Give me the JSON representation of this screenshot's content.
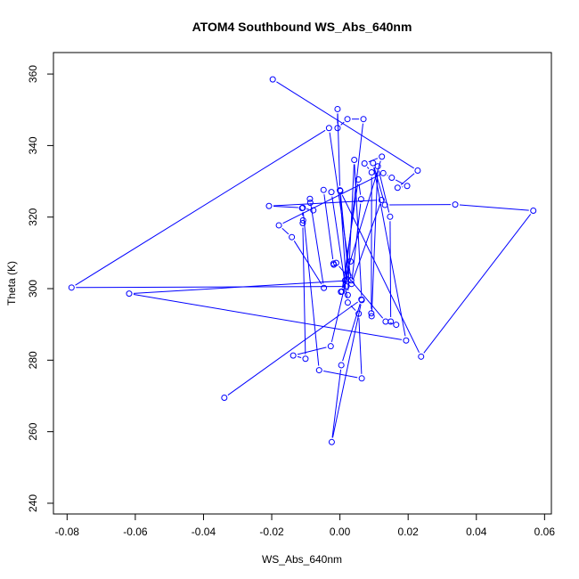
{
  "chart_data": {
    "type": "line",
    "title": "ATOM4 Southbound WS_Abs_640nm",
    "xlabel": "WS_Abs_640nm",
    "ylabel": "Theta (K)",
    "xlim": [
      -0.084,
      0.062
    ],
    "ylim": [
      237,
      366
    ],
    "xticks": [
      -0.08,
      -0.06,
      -0.04,
      -0.02,
      0.0,
      0.02,
      0.04,
      0.06
    ],
    "xtick_labels": [
      "-0.08",
      "-0.06",
      "-0.04",
      "-0.02",
      "0.00",
      "0.02",
      "0.04",
      "0.06"
    ],
    "yticks": [
      240,
      260,
      280,
      300,
      320,
      340,
      360
    ],
    "ytick_labels": [
      "240",
      "260",
      "280",
      "300",
      "320",
      "340",
      "360"
    ],
    "grid": false,
    "color": "#0000ff",
    "series": [
      {
        "points": [
          [
            -0.0197,
            358.5
          ],
          [
            0.0228,
            333.0
          ],
          [
            0.0169,
            328.2
          ],
          [
            0.0197,
            328.7
          ],
          [
            0.0152,
            331.0
          ],
          [
            0.0127,
            332.3
          ],
          [
            -0.0179,
            317.7
          ],
          [
            -0.0141,
            314.4
          ],
          [
            -0.0047,
            300.2
          ],
          [
            -0.0088,
            325.1
          ],
          [
            -0.0087,
            324.0
          ],
          [
            -0.0078,
            321.9
          ],
          [
            -0.0111,
            322.5
          ],
          [
            -0.0108,
            319.1
          ],
          [
            -0.0109,
            318.3
          ],
          [
            -0.0101,
            280.4
          ],
          [
            -0.0137,
            281.3
          ],
          [
            -0.0027,
            283.9
          ],
          [
            0.0031,
            307.6
          ],
          [
            0.0015,
            302.3
          ],
          [
            0.0069,
            347.4
          ],
          [
            0.0022,
            347.4
          ],
          [
            -0.0007,
            344.9
          ],
          [
            -0.0007,
            350.2
          ],
          [
            0.0,
            327.5
          ],
          [
            0.0019,
            300.6
          ],
          [
            -0.0787,
            300.3
          ],
          [
            -0.0032,
            344.9
          ],
          [
            0.0033,
            302.3
          ],
          [
            -0.0618,
            298.6
          ],
          [
            0.0194,
            285.5
          ],
          [
            0.0097,
            335.1
          ],
          [
            0.0132,
            323.4
          ],
          [
            0.0338,
            323.5
          ],
          [
            0.0567,
            321.8
          ],
          [
            0.0238,
            281.0
          ],
          [
            0.0001,
            327.3
          ],
          [
            0.0025,
            303.7
          ],
          [
            0.0003,
            299.1
          ],
          [
            0.0123,
            336.9
          ],
          [
            0.0072,
            335.0
          ],
          [
            0.0093,
            332.5
          ],
          [
            0.0092,
            293.1
          ],
          [
            0.0093,
            292.3
          ],
          [
            0.0111,
            334.2
          ],
          [
            0.0147,
            320.1
          ],
          [
            0.0149,
            290.8
          ],
          [
            0.0165,
            289.9
          ],
          [
            0.0134,
            290.8
          ],
          [
            -0.0011,
            307.2
          ],
          [
            -0.0018,
            306.7
          ],
          [
            -0.0019,
            307.0
          ],
          [
            -0.0048,
            327.6
          ],
          [
            -0.0025,
            327.0
          ],
          [
            0.0023,
            296.1
          ],
          [
            0.0055,
            293.0
          ],
          [
            0.0064,
            274.9
          ],
          [
            -0.0061,
            277.2
          ],
          [
            -0.0109,
            322.6
          ],
          [
            -0.0208,
            323.1
          ],
          [
            0.0122,
            324.8
          ],
          [
            0.0034,
            301.3
          ],
          [
            0.0062,
            325.0
          ],
          [
            0.0054,
            330.5
          ],
          [
            0.0006,
            299.2
          ],
          [
            0.0023,
            298.2
          ],
          [
            0.0042,
            336.0
          ],
          [
            0.0064,
            296.8
          ],
          [
            -0.0024,
            257.1
          ],
          [
            0.0004,
            278.6
          ],
          [
            0.0063,
            297.0
          ],
          [
            -0.0339,
            269.5
          ]
        ]
      }
    ]
  }
}
